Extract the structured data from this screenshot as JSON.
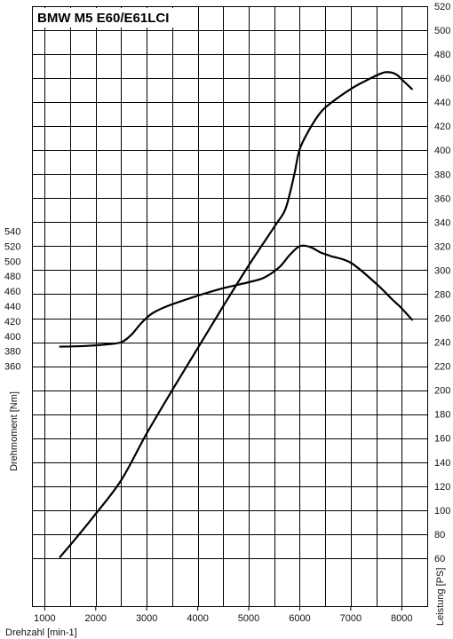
{
  "chart_data": {
    "type": "line",
    "title": "BMW M5 E60/E61LCI",
    "xlabel": "Drehzahl [min-1]",
    "ylabel_left": "Drehmoment [Nm]",
    "ylabel_right": "Leistung [PS]",
    "xlim": [
      750,
      8500
    ],
    "xticks": [
      1000,
      2000,
      3000,
      4000,
      5000,
      6000,
      7000,
      8000
    ],
    "ylim_right": [
      20,
      520
    ],
    "yticks_right": [
      60,
      80,
      100,
      120,
      140,
      160,
      180,
      200,
      220,
      240,
      260,
      280,
      300,
      320,
      340,
      360,
      380,
      400,
      420,
      440,
      460,
      480,
      500,
      520
    ],
    "ylim_left": [
      40,
      840
    ],
    "yticks_left": [
      360,
      380,
      400,
      420,
      440,
      460,
      480,
      500,
      520,
      540
    ],
    "grid": true,
    "series": [
      {
        "name": "",
        "axis": "right",
        "x": [
          1300,
          1600,
          2000,
          2500,
          3000,
          3500,
          4000,
          4500,
          5000,
          5500,
          5700,
          5800,
          5900,
          6000,
          6200,
          6400,
          6600,
          7000,
          7300,
          7600,
          7750,
          7900,
          8000,
          8200
        ],
        "y": [
          61,
          76,
          97,
          125,
          164,
          200,
          235,
          270,
          304,
          336,
          349,
          363,
          381,
          401,
          418,
          431,
          439,
          451,
          458,
          464,
          465,
          463,
          459,
          451
        ]
      },
      {
        "name": "",
        "axis": "left",
        "x": [
          1300,
          1800,
          2200,
          2500,
          2700,
          2900,
          3100,
          3400,
          4000,
          4500,
          5000,
          5300,
          5600,
          5800,
          6000,
          6200,
          6400,
          6600,
          7000,
          7500,
          7800,
          8000,
          8200
        ],
        "y": [
          386,
          387,
          389,
          392,
          402,
          418,
          430,
          440,
          454,
          464,
          472,
          478,
          492,
          508,
          520,
          519,
          512,
          507,
          498,
          470,
          450,
          437,
          422
        ]
      }
    ]
  }
}
